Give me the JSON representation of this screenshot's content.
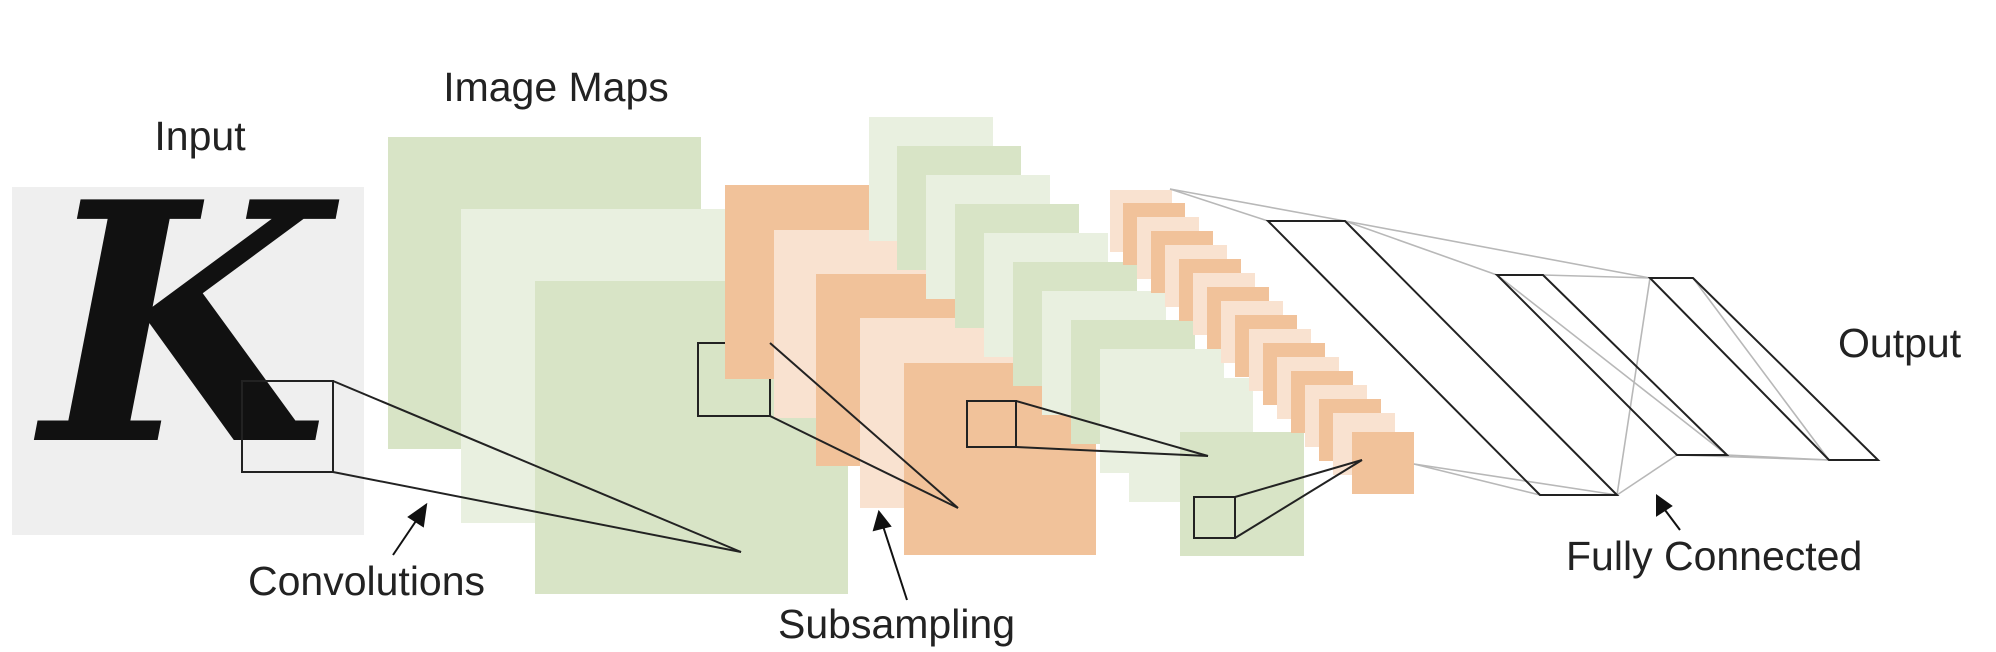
{
  "labels": {
    "input": "Input",
    "image_maps": "Image Maps",
    "convolutions": "Convolutions",
    "subsampling": "Subsampling",
    "fully_connected": "Fully Connected",
    "output": "Output"
  },
  "input_glyph": "K",
  "colors": {
    "input_bg": "#efefef",
    "green_dark": "#d8e4c6",
    "green_light": "#e9f0e0",
    "orange_dark": "#f1c29a",
    "orange_light": "#f9e2d0",
    "line": "#222222",
    "fc_line": "#b8b8b8"
  }
}
